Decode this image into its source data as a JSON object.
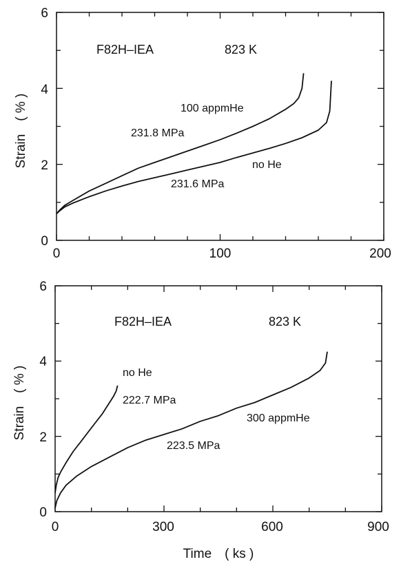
{
  "chart_data": [
    {
      "type": "line",
      "xlim": [
        0,
        200
      ],
      "ylim": [
        0,
        6
      ],
      "xticks": [
        0,
        100,
        200
      ],
      "yticks": [
        0,
        2,
        4,
        6
      ],
      "xlabel": "",
      "ylabel": "Strain　( % )",
      "grid": false,
      "annotations": {
        "material": "F82H–IEA",
        "temperature": "823 K",
        "series_a_label": "100 appmHe",
        "series_a_stress": "231.8 MPa",
        "series_b_label": "no He",
        "series_b_stress": "231.6 MPa"
      },
      "series": [
        {
          "name": "100 appmHe",
          "x": [
            0,
            2,
            5,
            10,
            20,
            30,
            40,
            50,
            60,
            70,
            80,
            90,
            100,
            110,
            120,
            130,
            140,
            145,
            148,
            150,
            151
          ],
          "y": [
            0.7,
            0.8,
            0.92,
            1.05,
            1.3,
            1.5,
            1.7,
            1.9,
            2.05,
            2.2,
            2.35,
            2.5,
            2.65,
            2.82,
            3.0,
            3.2,
            3.45,
            3.6,
            3.75,
            4.0,
            4.4
          ]
        },
        {
          "name": "no He",
          "x": [
            0,
            2,
            5,
            10,
            20,
            30,
            40,
            50,
            60,
            70,
            80,
            90,
            100,
            110,
            120,
            130,
            140,
            150,
            160,
            165,
            167,
            168
          ],
          "y": [
            0.7,
            0.78,
            0.88,
            0.98,
            1.15,
            1.3,
            1.43,
            1.55,
            1.65,
            1.75,
            1.85,
            1.95,
            2.05,
            2.18,
            2.3,
            2.42,
            2.55,
            2.7,
            2.9,
            3.1,
            3.4,
            4.2
          ]
        }
      ]
    },
    {
      "type": "line",
      "xlim": [
        0,
        900
      ],
      "ylim": [
        0,
        6
      ],
      "xticks": [
        0,
        300,
        600,
        900
      ],
      "yticks": [
        0,
        2,
        4,
        6
      ],
      "xlabel": "Time　( ks )",
      "ylabel": "Strain　( % )",
      "grid": false,
      "annotations": {
        "material": "F82H–IEA",
        "temperature": "823 K",
        "series_a_label": "no He",
        "series_a_stress": "222.7 MPa",
        "series_b_label": "300 appmHe",
        "series_b_stress": "223.5 MPa"
      },
      "series": [
        {
          "name": "no He",
          "x": [
            0,
            3,
            8,
            15,
            30,
            50,
            70,
            90,
            110,
            130,
            150,
            160,
            168,
            172
          ],
          "y": [
            0.5,
            0.7,
            0.9,
            1.05,
            1.3,
            1.6,
            1.85,
            2.1,
            2.35,
            2.6,
            2.9,
            3.05,
            3.2,
            3.35
          ]
        },
        {
          "name": "300 appmHe",
          "x": [
            0,
            5,
            15,
            30,
            60,
            100,
            150,
            200,
            250,
            300,
            350,
            400,
            450,
            500,
            550,
            600,
            650,
            700,
            730,
            745,
            750
          ],
          "y": [
            0.1,
            0.3,
            0.5,
            0.7,
            0.95,
            1.2,
            1.45,
            1.7,
            1.9,
            2.05,
            2.2,
            2.4,
            2.55,
            2.75,
            2.9,
            3.1,
            3.3,
            3.55,
            3.75,
            3.95,
            4.25
          ]
        }
      ]
    }
  ]
}
